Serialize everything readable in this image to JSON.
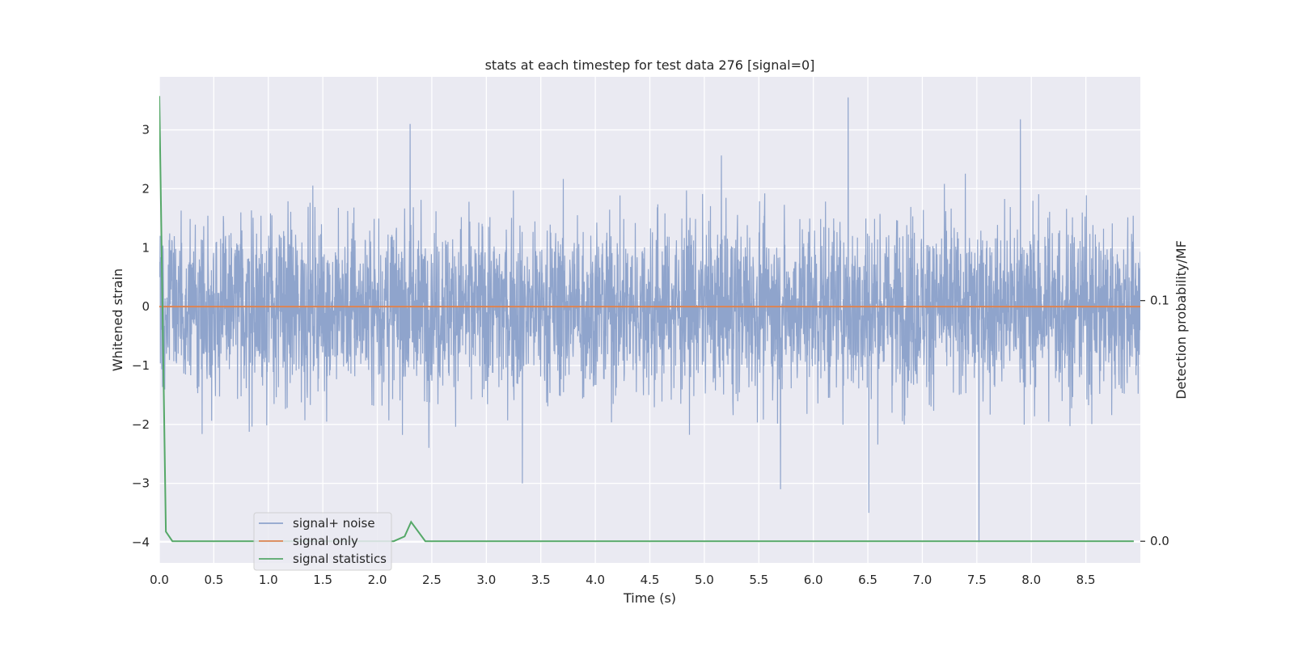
{
  "chart_data": {
    "type": "line",
    "title": "stats at each timestep for test data 276 [signal=0]",
    "xlabel": "Time (s)",
    "ylabel": "Whitened strain",
    "ylabel_right": "Detection probability/MF",
    "xlim": [
      0,
      9.0
    ],
    "ylim": [
      -4.35,
      3.9
    ],
    "ylim_right": [
      -0.009,
      0.193
    ],
    "x_ticks": [
      "0.0",
      "0.5",
      "1.0",
      "1.5",
      "2.0",
      "2.5",
      "3.0",
      "3.5",
      "4.0",
      "4.5",
      "5.0",
      "5.5",
      "6.0",
      "6.5",
      "7.0",
      "7.5",
      "8.0",
      "8.5"
    ],
    "y_ticks": [
      "3",
      "2",
      "1",
      "0",
      "−1",
      "−2",
      "−3",
      "−4"
    ],
    "y_ticks_right": [
      "0.1",
      "0.0"
    ],
    "grid": true,
    "legend_position": "lower-left",
    "series": [
      {
        "name": "signal+ noise",
        "color": "#8fa4cc",
        "axis": "left",
        "description_x_range": [
          0,
          9.0
        ],
        "noise_sigma": 0.75,
        "peaks": [
          {
            "x": 2.3,
            "y": 3.1
          },
          {
            "x": 6.32,
            "y": 3.55
          },
          {
            "x": 7.9,
            "y": 3.18
          },
          {
            "x": 3.33,
            "y": -3.0
          },
          {
            "x": 5.7,
            "y": -3.1
          },
          {
            "x": 6.51,
            "y": -3.5
          },
          {
            "x": 7.52,
            "y": -4.0
          }
        ]
      },
      {
        "name": "signal only",
        "color": "#dd8452",
        "axis": "left",
        "x": [
          0,
          9.0
        ],
        "y": [
          0,
          0
        ]
      },
      {
        "name": "signal statistics",
        "color": "#55a868",
        "axis": "right",
        "x": [
          0.0,
          0.06,
          0.12,
          0.5,
          1.0,
          1.5,
          2.0,
          2.15,
          2.25,
          2.31,
          2.44,
          3.0,
          4.0,
          5.0,
          6.0,
          7.0,
          8.0,
          8.94
        ],
        "y": [
          0.185,
          0.004,
          0.0,
          0.0,
          0.0,
          0.0,
          0.0,
          0.0,
          0.002,
          0.008,
          0.0,
          0.0,
          0.0,
          0.0,
          0.0,
          0.0,
          0.0,
          0.0
        ]
      }
    ]
  }
}
